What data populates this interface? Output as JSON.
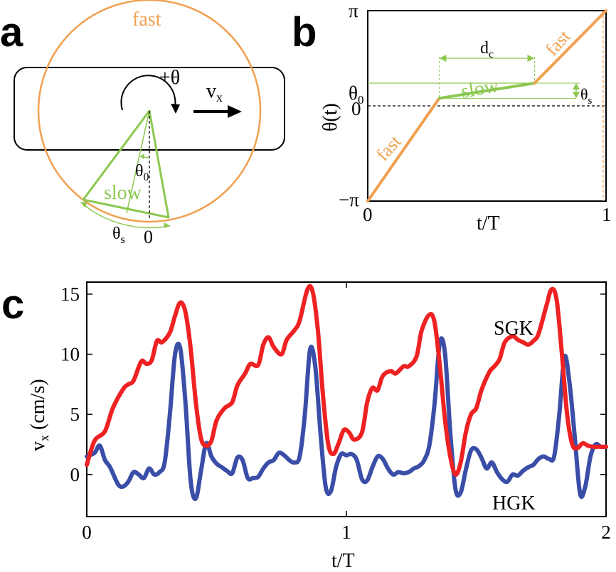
{
  "panels": {
    "a": {
      "letter": "a",
      "label_fast": "fast",
      "label_slow": "slow",
      "label_theta_plus": "+θ",
      "label_vx_main": "v",
      "label_vx_sub": "x",
      "label_theta0_main": "θ",
      "label_theta0_sub": "0",
      "label_thetas_main": "θ",
      "label_thetas_sub": "s",
      "label_zero": "0"
    },
    "b": {
      "letter": "b",
      "ytick_pi": "π",
      "ytick_theta0_main": "θ",
      "ytick_theta0_sub": "0",
      "ytick_zero": "0",
      "ytick_minus_pi": "−π",
      "ylabel": "θ(t)",
      "xtick_0": "0",
      "xtick_1": "1",
      "xlabel": "t/T",
      "label_fast": "fast",
      "label_slow": "slow",
      "label_dc_main": "d",
      "label_dc_sub": "c",
      "label_thetas_main": "θ",
      "label_thetas_sub": "s"
    },
    "c": {
      "letter": "c",
      "ylabel_main": "v",
      "ylabel_sub": "x",
      "ylabel_rest": " (cm/s)",
      "xlabel": "t/T",
      "label_sgk": "SGK",
      "label_hgk": "HGK"
    }
  },
  "colors": {
    "fast": "#f0a050",
    "slow": "#8cc850",
    "sgk": "#ee2222",
    "hgk": "#3a4ea8"
  },
  "chart_data": [
    {
      "panel": "b",
      "type": "line",
      "xlabel": "t/T",
      "ylabel": "θ(t)",
      "xlim": [
        0,
        1
      ],
      "ylim": [
        -3.1416,
        3.1416
      ],
      "yticks": [
        "−π",
        "0",
        "θ0",
        "π"
      ],
      "series": [
        {
          "name": "fast",
          "x": [
            0,
            0.3
          ],
          "y": [
            -3.1416,
            0.25
          ]
        },
        {
          "name": "slow",
          "x": [
            0.3,
            0.7
          ],
          "y": [
            0.25,
            0.75
          ]
        },
        {
          "name": "fast",
          "x": [
            0.7,
            1.0
          ],
          "y": [
            0.75,
            3.1416
          ]
        }
      ]
    },
    {
      "panel": "c",
      "type": "line",
      "xlabel": "t/T",
      "ylabel": "vx (cm/s)",
      "xlim": [
        0,
        2
      ],
      "ylim": [
        -3.5,
        16
      ],
      "xticks": [
        0,
        1,
        2
      ],
      "yticks": [
        0,
        5,
        10,
        15
      ],
      "series": [
        {
          "name": "SGK",
          "x": [
            0,
            0.03,
            0.07,
            0.1,
            0.14,
            0.16,
            0.18,
            0.21,
            0.23,
            0.25,
            0.27,
            0.29,
            0.32,
            0.34,
            0.36,
            0.38,
            0.4,
            0.42,
            0.44,
            0.46,
            0.48,
            0.5,
            0.53,
            0.56,
            0.58,
            0.61,
            0.63,
            0.66,
            0.68,
            0.7,
            0.72,
            0.75,
            0.77,
            0.8,
            0.82,
            0.85,
            0.87,
            0.89,
            0.91,
            0.93,
            0.95,
            0.97,
            0.99,
            1.01,
            1.03,
            1.06,
            1.08,
            1.1,
            1.12,
            1.14,
            1.17,
            1.19,
            1.22,
            1.24,
            1.27,
            1.29,
            1.32,
            1.34,
            1.36,
            1.38,
            1.4,
            1.42,
            1.44,
            1.46,
            1.48,
            1.5,
            1.52,
            1.55,
            1.57,
            1.59,
            1.61,
            1.64,
            1.66,
            1.68,
            1.7,
            1.72,
            1.74,
            1.77,
            1.79,
            1.81,
            1.83,
            1.85,
            1.87,
            1.89,
            1.91,
            1.93,
            1.95,
            1.97,
            2.0
          ],
          "y": [
            0.8,
            2.8,
            3.6,
            5.5,
            7.1,
            7.5,
            7.8,
            9.4,
            9.2,
            9.5,
            11.1,
            11.0,
            11.8,
            13.2,
            14.3,
            13.5,
            10.5,
            6.0,
            3.0,
            2.4,
            2.8,
            4.5,
            5.5,
            6.0,
            7.4,
            8.4,
            9.2,
            9.1,
            10.8,
            11.4,
            10.6,
            10.0,
            11.2,
            12.0,
            12.8,
            15.4,
            15.2,
            12.0,
            6.5,
            2.5,
            1.7,
            2.6,
            3.7,
            3.5,
            2.9,
            3.5,
            6.0,
            7.2,
            7.0,
            8.2,
            8.6,
            8.4,
            9.0,
            9.0,
            9.8,
            12.0,
            13.3,
            12.6,
            9.0,
            4.5,
            1.5,
            0.0,
            1.0,
            3.5,
            5.0,
            5.5,
            7.0,
            8.5,
            9.0,
            9.6,
            11.0,
            11.5,
            11.2,
            11.0,
            10.8,
            11.1,
            11.7,
            14.0,
            15.4,
            14.5,
            10.0,
            5.0,
            2.5,
            2.2,
            2.6,
            2.4,
            2.3,
            2.3,
            2.3
          ]
        },
        {
          "name": "HGK",
          "x": [
            0,
            0.03,
            0.05,
            0.07,
            0.09,
            0.12,
            0.14,
            0.16,
            0.18,
            0.2,
            0.22,
            0.24,
            0.26,
            0.28,
            0.3,
            0.32,
            0.34,
            0.36,
            0.38,
            0.4,
            0.42,
            0.44,
            0.46,
            0.48,
            0.5,
            0.52,
            0.54,
            0.56,
            0.58,
            0.6,
            0.62,
            0.64,
            0.66,
            0.68,
            0.7,
            0.72,
            0.74,
            0.76,
            0.78,
            0.8,
            0.82,
            0.84,
            0.86,
            0.88,
            0.9,
            0.92,
            0.94,
            0.96,
            0.98,
            1.0,
            1.02,
            1.04,
            1.06,
            1.08,
            1.1,
            1.12,
            1.14,
            1.16,
            1.18,
            1.2,
            1.22,
            1.24,
            1.26,
            1.28,
            1.3,
            1.32,
            1.34,
            1.36,
            1.38,
            1.4,
            1.42,
            1.44,
            1.46,
            1.48,
            1.5,
            1.52,
            1.54,
            1.56,
            1.58,
            1.6,
            1.62,
            1.64,
            1.66,
            1.68,
            1.7,
            1.72,
            1.74,
            1.76,
            1.78,
            1.8,
            1.82,
            1.84,
            1.86,
            1.88,
            1.9,
            1.92,
            1.94,
            1.96,
            1.98,
            2.0
          ],
          "y": [
            1.5,
            1.8,
            2.4,
            1.2,
            0.6,
            -0.8,
            -1.0,
            -0.6,
            0.2,
            0.0,
            -0.3,
            0.5,
            0.0,
            0.2,
            1.0,
            5.0,
            10.0,
            10.5,
            6.0,
            -0.5,
            -2.0,
            0.3,
            2.6,
            1.5,
            0.9,
            0.6,
            0.3,
            0.1,
            1.4,
            1.2,
            -0.3,
            -0.3,
            -0.2,
            0.5,
            1.0,
            1.2,
            1.8,
            1.6,
            1.2,
            1.0,
            1.5,
            5.0,
            10.4,
            9.0,
            3.5,
            -1.0,
            -1.4,
            0.6,
            1.7,
            1.6,
            1.7,
            1.2,
            -0.4,
            -0.5,
            0.6,
            1.5,
            1.3,
            0.5,
            0.0,
            0.2,
            0.1,
            0.2,
            0.5,
            0.7,
            1.2,
            2.5,
            6.0,
            11.0,
            10.0,
            3.5,
            -1.2,
            -1.5,
            0.4,
            2.0,
            2.1,
            1.4,
            0.5,
            1.0,
            0.2,
            -0.4,
            -0.6,
            0.0,
            -0.1,
            0.3,
            0.6,
            0.8,
            1.3,
            1.5,
            1.3,
            1.5,
            5.0,
            9.8,
            7.5,
            3.0,
            -1.6,
            -1.0,
            1.5,
            2.5,
            2.3,
            2.3
          ]
        }
      ]
    }
  ]
}
